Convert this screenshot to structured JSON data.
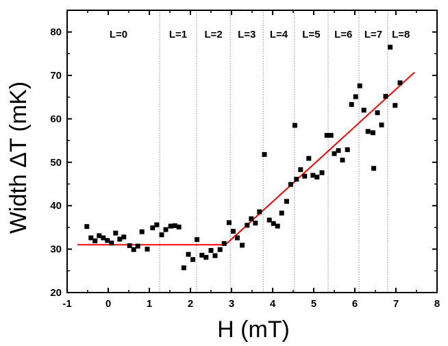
{
  "chart_data": {
    "type": "scatter",
    "title": "",
    "xlabel": "H (mT)",
    "ylabel": "Width ΔT (mK)",
    "xlim": [
      -1,
      8
    ],
    "ylim": [
      20,
      85
    ],
    "x_ticks": [
      -1,
      0,
      1,
      2,
      3,
      4,
      5,
      6,
      7,
      8
    ],
    "y_ticks": [
      20,
      30,
      40,
      50,
      60,
      70,
      80
    ],
    "grid": false,
    "colors": {
      "points": "#000000",
      "fit": "#ff0000",
      "dividers": "#888888"
    },
    "series": [
      {
        "name": "data",
        "marker": "square",
        "points": [
          [
            -0.52,
            35.2
          ],
          [
            -0.42,
            32.6
          ],
          [
            -0.32,
            31.9
          ],
          [
            -0.22,
            33.1
          ],
          [
            -0.12,
            32.6
          ],
          [
            -0.02,
            32.0
          ],
          [
            0.08,
            31.4
          ],
          [
            0.18,
            33.7
          ],
          [
            0.28,
            32.3
          ],
          [
            0.38,
            32.8
          ],
          [
            0.52,
            30.8
          ],
          [
            0.62,
            29.9
          ],
          [
            0.72,
            30.7
          ],
          [
            0.82,
            34.0
          ],
          [
            0.95,
            30.0
          ],
          [
            1.08,
            34.9
          ],
          [
            1.18,
            35.6
          ],
          [
            1.3,
            33.3
          ],
          [
            1.4,
            34.5
          ],
          [
            1.52,
            35.3
          ],
          [
            1.62,
            35.4
          ],
          [
            1.72,
            35.1
          ],
          [
            1.84,
            25.7
          ],
          [
            1.95,
            28.8
          ],
          [
            2.06,
            27.6
          ],
          [
            2.16,
            32.2
          ],
          [
            2.28,
            28.6
          ],
          [
            2.38,
            28.1
          ],
          [
            2.5,
            29.7
          ],
          [
            2.6,
            28.5
          ],
          [
            2.72,
            29.9
          ],
          [
            2.82,
            31.3
          ],
          [
            2.94,
            36.1
          ],
          [
            3.04,
            34.1
          ],
          [
            3.14,
            32.6
          ],
          [
            3.26,
            30.9
          ],
          [
            3.38,
            35.5
          ],
          [
            3.48,
            37.0
          ],
          [
            3.58,
            36.0
          ],
          [
            3.68,
            38.6
          ],
          [
            3.8,
            51.8
          ],
          [
            3.92,
            36.7
          ],
          [
            4.02,
            35.9
          ],
          [
            4.12,
            35.3
          ],
          [
            4.22,
            38.3
          ],
          [
            4.34,
            41.0
          ],
          [
            4.44,
            44.9
          ],
          [
            4.54,
            58.5
          ],
          [
            4.58,
            46.1
          ],
          [
            4.68,
            48.3
          ],
          [
            4.78,
            46.8
          ],
          [
            4.88,
            50.9
          ],
          [
            4.98,
            47.0
          ],
          [
            5.08,
            46.6
          ],
          [
            5.2,
            47.6
          ],
          [
            5.32,
            56.2
          ],
          [
            5.42,
            56.2
          ],
          [
            5.5,
            52.0
          ],
          [
            5.6,
            52.7
          ],
          [
            5.7,
            50.5
          ],
          [
            5.82,
            52.9
          ],
          [
            5.92,
            63.3
          ],
          [
            6.02,
            65.1
          ],
          [
            6.12,
            67.6
          ],
          [
            6.22,
            62.0
          ],
          [
            6.32,
            57.1
          ],
          [
            6.44,
            56.8
          ],
          [
            6.46,
            48.6
          ],
          [
            6.55,
            61.4
          ],
          [
            6.65,
            58.6
          ],
          [
            6.75,
            65.2
          ],
          [
            6.86,
            76.5
          ],
          [
            6.98,
            63.1
          ],
          [
            7.1,
            68.3
          ]
        ]
      }
    ],
    "fit_line": {
      "name": "linear fit",
      "points": [
        [
          -0.75,
          31.0
        ],
        [
          2.85,
          31.0
        ],
        [
          7.45,
          70.7
        ]
      ]
    },
    "regions": {
      "boundaries": [
        1.25,
        2.15,
        2.97,
        3.77,
        4.53,
        5.35,
        6.1,
        6.8
      ],
      "labels": [
        {
          "text": "L=0",
          "x": 0.25
        },
        {
          "text": "L=1",
          "x": 1.7
        },
        {
          "text": "L=2",
          "x": 2.56
        },
        {
          "text": "L=3",
          "x": 3.37
        },
        {
          "text": "L=4",
          "x": 4.15
        },
        {
          "text": "L=5",
          "x": 4.94
        },
        {
          "text": "L=6",
          "x": 5.72
        },
        {
          "text": "L=7",
          "x": 6.45
        },
        {
          "text": "L=8",
          "x": 7.12
        }
      ],
      "label_y": 79.5
    }
  }
}
